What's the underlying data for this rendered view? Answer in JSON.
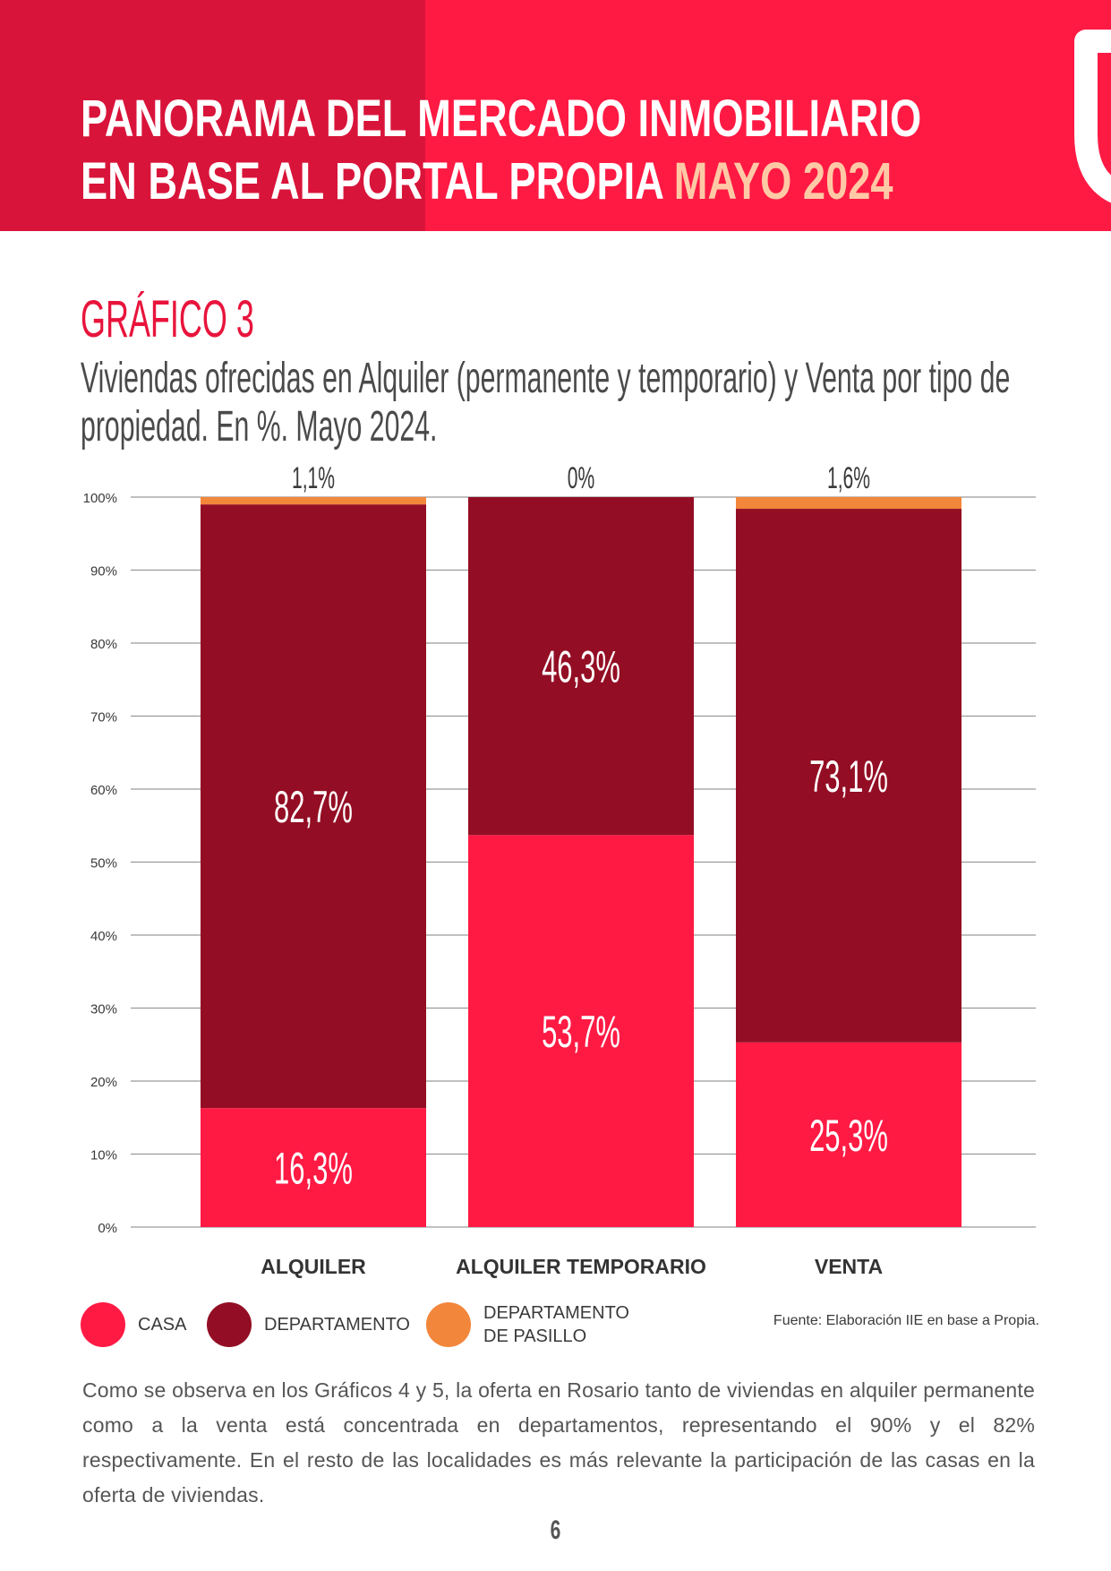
{
  "header": {
    "title_line1": "PANORAMA DEL MERCADO INMOBILIARIO",
    "title_line2": "EN BASE AL PORTAL PROPIA",
    "title_accent": "MAYO 2024"
  },
  "figure": {
    "label": "GRÁFICO 3",
    "title_line1": "Viviendas ofrecidas en Alquiler (permanente y temporario) y Venta por tipo de",
    "title_line2": "propiedad. En %. Mayo 2024."
  },
  "chart_data": {
    "type": "bar",
    "stacked": true,
    "categories": [
      "ALQUILER",
      "ALQUILER TEMPORARIO",
      "VENTA"
    ],
    "series": [
      {
        "name": "CASA",
        "color": "#ff1a44",
        "values": [
          16.3,
          53.7,
          25.3
        ],
        "labels": [
          "16,3%",
          "53,7%",
          "25,3%"
        ]
      },
      {
        "name": "DEPARTAMENTO",
        "color": "#930e24",
        "values": [
          82.7,
          46.3,
          73.1
        ],
        "labels": [
          "82,7%",
          "46,3%",
          "73,1%"
        ]
      },
      {
        "name": "DEPARTAMENTO DE PASILLO",
        "color": "#f2863a",
        "values": [
          1.1,
          0,
          1.6
        ],
        "labels": [
          "1,1%",
          "0%",
          "1,6%"
        ]
      }
    ],
    "ylim": [
      0,
      100
    ],
    "yticks": [
      "0%",
      "10%",
      "20%",
      "30%",
      "40%",
      "50%",
      "60%",
      "70%",
      "80%",
      "90%",
      "100%"
    ],
    "grid": true,
    "legend_position": "bottom"
  },
  "legend": {
    "items": [
      {
        "label": "CASA",
        "color": "#ff1a44"
      },
      {
        "label_line1": "DEPARTAMENTO",
        "color": "#930e24"
      },
      {
        "label_line1": "DEPARTAMENTO",
        "label_line2": "DE PASILLO",
        "color": "#f2863a"
      }
    ]
  },
  "source": "Fuente: Elaboración IIE en base a Propia.",
  "body_text": "Como se observa en los Gráficos 4 y 5, la oferta en Rosario tanto de viviendas en alquiler permanente como a la venta está concentrada en departamentos, representando el 90% y el 82% respectivamente. En el resto de las localidades es más relevante la participación de las casas en la oferta de viviendas.",
  "page_number": "6"
}
